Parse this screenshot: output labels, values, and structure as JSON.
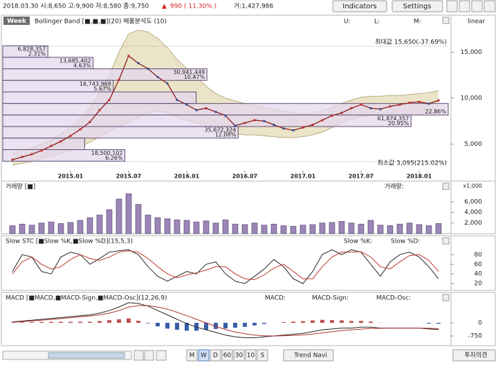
{
  "header": {
    "quote": "2018.03.30 시:8,650 고:9,900 저:8,580 종:9,750",
    "change_mark": "▲",
    "change": "990 ( 11.30% )",
    "volume": "거:1,427,986"
  },
  "toolbar": {
    "indicators": "Indicators",
    "settings": "Settings"
  },
  "chart_data": [
    {
      "type": "line",
      "period": "Week",
      "title": "Bollinger Band [■,■,■](20) 매물분석도 (10)",
      "readouts": [
        "U:",
        "L:",
        "M:"
      ],
      "scale_label": "linear",
      "x": [
        "2014.07",
        "2014.08",
        "2014.09",
        "2014.10",
        "2014.11",
        "2014.12",
        "2015.01",
        "2015.02",
        "2015.03",
        "2015.04",
        "2015.05",
        "2015.06",
        "2015.07",
        "2015.08",
        "2015.09",
        "2015.10",
        "2015.11",
        "2015.12",
        "2016.01",
        "2016.02",
        "2016.03",
        "2016.04",
        "2016.05",
        "2016.06",
        "2016.07",
        "2016.08",
        "2016.09",
        "2016.10",
        "2016.11",
        "2016.12",
        "2017.01",
        "2017.02",
        "2017.03",
        "2017.04",
        "2017.05",
        "2017.06",
        "2017.07",
        "2017.08",
        "2017.09",
        "2017.10",
        "2017.11",
        "2017.12",
        "2018.01",
        "2018.02",
        "2018.03"
      ],
      "xlim": [
        "2014.06",
        "2018.04"
      ],
      "xticks": [
        "2015.01",
        "2015.07",
        "2016.01",
        "2016.07",
        "2017.01",
        "2017.07",
        "2018.01"
      ],
      "values": [
        3300,
        3600,
        3900,
        4300,
        4800,
        5300,
        5900,
        6600,
        7400,
        8700,
        9800,
        12000,
        14600,
        13800,
        13200,
        12300,
        11600,
        9800,
        9300,
        8700,
        8900,
        8500,
        8100,
        7000,
        7300,
        7600,
        7500,
        7100,
        6700,
        6500,
        6800,
        7100,
        7600,
        8100,
        8400,
        8900,
        9300,
        8900,
        8800,
        9100,
        9300,
        9500,
        9600,
        9400,
        9750
      ],
      "upper": [
        4000,
        4300,
        4600,
        5000,
        5500,
        6100,
        6800,
        7800,
        9000,
        10500,
        12500,
        15000,
        17000,
        17400,
        17200,
        16500,
        15500,
        14200,
        13200,
        12300,
        11300,
        10500,
        10000,
        9700,
        9400,
        9200,
        9000,
        8800,
        8600,
        8400,
        8300,
        8300,
        8600,
        9000,
        9400,
        9800,
        10100,
        10200,
        10200,
        10300,
        10300,
        10400,
        10500,
        10600,
        10800
      ],
      "lower": [
        2700,
        2900,
        3100,
        3400,
        3700,
        4000,
        4300,
        4700,
        5200,
        5800,
        6400,
        6900,
        7400,
        7900,
        8400,
        8600,
        8400,
        7900,
        7600,
        7300,
        7000,
        6700,
        6300,
        6100,
        6000,
        6000,
        5900,
        5800,
        5700,
        5700,
        5800,
        6000,
        6300,
        6800,
        7300,
        7700,
        8000,
        8100,
        8100,
        8200,
        8200,
        8300,
        8300,
        8300,
        8500
      ],
      "color": "#8b1a1a",
      "band_color": "#ebe4c8",
      "ylim": [
        2250,
        17670
      ],
      "yticks": [
        {
          "value": 5000,
          "label": "5,000"
        },
        {
          "value": 10000,
          "label": "10,000"
        },
        {
          "value": 15000,
          "label": "15,000"
        }
      ],
      "annotations": [
        {
          "value": 15650,
          "label": "최대값 15,650(-37.69%)"
        },
        {
          "value": 3095,
          "label": "최소값 3,095(215.02%)"
        }
      ],
      "volume_profile": {
        "levels": [
          15700,
          14444,
          13188,
          11932,
          10676,
          9420,
          8164,
          6908,
          5652,
          4396,
          3140
        ],
        "volumes": [
          6828357,
          13685402,
          30941449,
          16743969,
          29300000,
          67500000,
          61874357,
          35672324,
          12400000,
          18500102
        ],
        "value_labels": [
          "6,828,357",
          "13,685,402",
          "30,941,449",
          "16,743,969",
          null,
          null,
          "61,874,357",
          "35,672,324",
          null,
          "18,500,102"
        ],
        "percents": [
          2.31,
          4.63,
          10.47,
          5.67,
          null,
          22.86,
          20.95,
          12.08,
          null,
          6.26
        ],
        "percent_labels": [
          "2.31%",
          "4.63%",
          "10.47%",
          "5.67%",
          null,
          "22.86%",
          "20.95%",
          "12.08%",
          null,
          "6.26%"
        ],
        "color": "#e4d8ee"
      }
    },
    {
      "type": "bar",
      "title": "거래량 [■]",
      "readout": "거래량:",
      "unit_label": "x1,000",
      "x": [
        "2014.07",
        "2014.08",
        "2014.09",
        "2014.10",
        "2014.11",
        "2014.12",
        "2015.01",
        "2015.02",
        "2015.03",
        "2015.04",
        "2015.05",
        "2015.06",
        "2015.07",
        "2015.08",
        "2015.09",
        "2015.10",
        "2015.11",
        "2015.12",
        "2016.01",
        "2016.02",
        "2016.03",
        "2016.04",
        "2016.05",
        "2016.06",
        "2016.07",
        "2016.08",
        "2016.09",
        "2016.10",
        "2016.11",
        "2016.12",
        "2017.01",
        "2017.02",
        "2017.03",
        "2017.04",
        "2017.05",
        "2017.06",
        "2017.07",
        "2017.08",
        "2017.09",
        "2017.10",
        "2017.11",
        "2017.12",
        "2018.01",
        "2018.02",
        "2018.03"
      ],
      "xlim": [
        "2014.06",
        "2018.04"
      ],
      "values": [
        1500,
        1800,
        1600,
        2000,
        2200,
        1900,
        2100,
        2500,
        3000,
        3500,
        4500,
        6500,
        7500,
        5500,
        3500,
        3000,
        2800,
        2600,
        2500,
        2200,
        2400,
        2000,
        2600,
        1800,
        1700,
        2000,
        1600,
        1800,
        1500,
        1400,
        1600,
        1700,
        2000,
        2100,
        2300,
        2000,
        1800,
        2500,
        1600,
        1500,
        1800,
        2000,
        1700,
        1500,
        1900
      ],
      "color": "#9c86b8",
      "ylim": [
        0,
        8050
      ],
      "yticks": [
        {
          "value": 2000,
          "label": "2,000"
        },
        {
          "value": 4000,
          "label": "4,000"
        },
        {
          "value": 6000,
          "label": "6,000"
        }
      ]
    },
    {
      "type": "line",
      "title": "Slow STC [■Slow %K,■Slow %D](15,5,3)",
      "x": [
        "2014.07",
        "2014.08",
        "2014.09",
        "2014.10",
        "2014.11",
        "2014.12",
        "2015.01",
        "2015.02",
        "2015.03",
        "2015.04",
        "2015.05",
        "2015.06",
        "2015.07",
        "2015.08",
        "2015.09",
        "2015.10",
        "2015.11",
        "2015.12",
        "2016.01",
        "2016.02",
        "2016.03",
        "2016.04",
        "2016.05",
        "2016.06",
        "2016.07",
        "2016.08",
        "2016.09",
        "2016.10",
        "2016.11",
        "2016.12",
        "2017.01",
        "2017.02",
        "2017.03",
        "2017.04",
        "2017.05",
        "2017.06",
        "2017.07",
        "2017.08",
        "2017.09",
        "2017.10",
        "2017.11",
        "2017.12",
        "2018.01",
        "2018.02",
        "2018.03"
      ],
      "xlim": [
        "2014.06",
        "2018.04"
      ],
      "series": [
        {
          "name": "Slow %K:",
          "color": "#222222",
          "values": [
            45,
            80,
            75,
            45,
            40,
            75,
            85,
            80,
            60,
            72,
            85,
            88,
            90,
            80,
            55,
            35,
            25,
            35,
            45,
            40,
            60,
            65,
            40,
            25,
            20,
            35,
            50,
            70,
            55,
            30,
            20,
            45,
            80,
            90,
            80,
            90,
            85,
            60,
            35,
            65,
            80,
            85,
            75,
            55,
            30
          ]
        },
        {
          "name": "Slow %D:",
          "color": "#c0392b",
          "values": [
            40,
            65,
            75,
            60,
            50,
            55,
            70,
            80,
            72,
            68,
            75,
            85,
            88,
            85,
            72,
            55,
            40,
            32,
            38,
            42,
            48,
            55,
            55,
            40,
            30,
            28,
            38,
            52,
            60,
            45,
            30,
            30,
            55,
            75,
            85,
            85,
            86,
            75,
            55,
            50,
            65,
            78,
            80,
            68,
            45
          ]
        }
      ],
      "ylim": [
        6,
        99
      ],
      "yticks": [
        20,
        40,
        60,
        80
      ]
    },
    {
      "type": "macd",
      "title": "MACD [■MACD,■MACD-Sign,■MACD-Osc](12,26,9)",
      "x": [
        "2014.07",
        "2014.08",
        "2014.09",
        "2014.10",
        "2014.11",
        "2014.12",
        "2015.01",
        "2015.02",
        "2015.03",
        "2015.04",
        "2015.05",
        "2015.06",
        "2015.07",
        "2015.08",
        "2015.09",
        "2015.10",
        "2015.11",
        "2015.12",
        "2016.01",
        "2016.02",
        "2016.03",
        "2016.04",
        "2016.05",
        "2016.06",
        "2016.07",
        "2016.08",
        "2016.09",
        "2016.10",
        "2016.11",
        "2016.12",
        "2017.01",
        "2017.02",
        "2017.03",
        "2017.04",
        "2017.05",
        "2017.06",
        "2017.07",
        "2017.08",
        "2017.09",
        "2017.10",
        "2017.11",
        "2017.12",
        "2018.01",
        "2018.02",
        "2018.03"
      ],
      "xlim": [
        "2014.06",
        "2018.04"
      ],
      "series": [
        {
          "name": "MACD:",
          "color": "#222222",
          "values": [
            50,
            100,
            150,
            200,
            250,
            300,
            350,
            400,
            450,
            550,
            700,
            900,
            1150,
            1100,
            950,
            700,
            450,
            200,
            -50,
            -250,
            -400,
            -550,
            -700,
            -800,
            -850,
            -850,
            -800,
            -750,
            -700,
            -650,
            -600,
            -500,
            -400,
            -350,
            -300,
            -300,
            -250,
            -250,
            -300,
            -300,
            -300,
            -300,
            -300,
            -350,
            -380
          ]
        },
        {
          "name": "MACD-Sign:",
          "color": "#b03030",
          "values": [
            30,
            70,
            110,
            150,
            190,
            240,
            290,
            340,
            390,
            450,
            550,
            700,
            900,
            980,
            980,
            900,
            780,
            600,
            400,
            200,
            0,
            -200,
            -380,
            -520,
            -620,
            -700,
            -740,
            -750,
            -740,
            -720,
            -690,
            -640,
            -570,
            -500,
            -440,
            -400,
            -360,
            -320,
            -310,
            -300,
            -300,
            -300,
            -300,
            -310,
            -330
          ]
        },
        {
          "name": "MACD-Osc:",
          "up_color": "#c05050",
          "down_color": "#3a5fa8",
          "values": [
            20,
            30,
            40,
            50,
            60,
            60,
            60,
            60,
            60,
            100,
            150,
            200,
            250,
            120,
            -30,
            -200,
            -330,
            -400,
            -450,
            -450,
            -400,
            -350,
            -320,
            -280,
            -230,
            -150,
            -60,
            0,
            40,
            70,
            90,
            140,
            170,
            150,
            140,
            100,
            110,
            70,
            10,
            0,
            0,
            0,
            0,
            -40,
            -50
          ]
        }
      ],
      "ylim": [
        -1300,
        1180
      ],
      "yticks": [
        -750,
        0
      ]
    }
  ],
  "bottom_bar": {
    "periods": [
      "M",
      "W",
      "D",
      "60",
      "30",
      "10",
      "S"
    ],
    "trend_navi": "Trend Navi",
    "opinion": "투자의견"
  }
}
